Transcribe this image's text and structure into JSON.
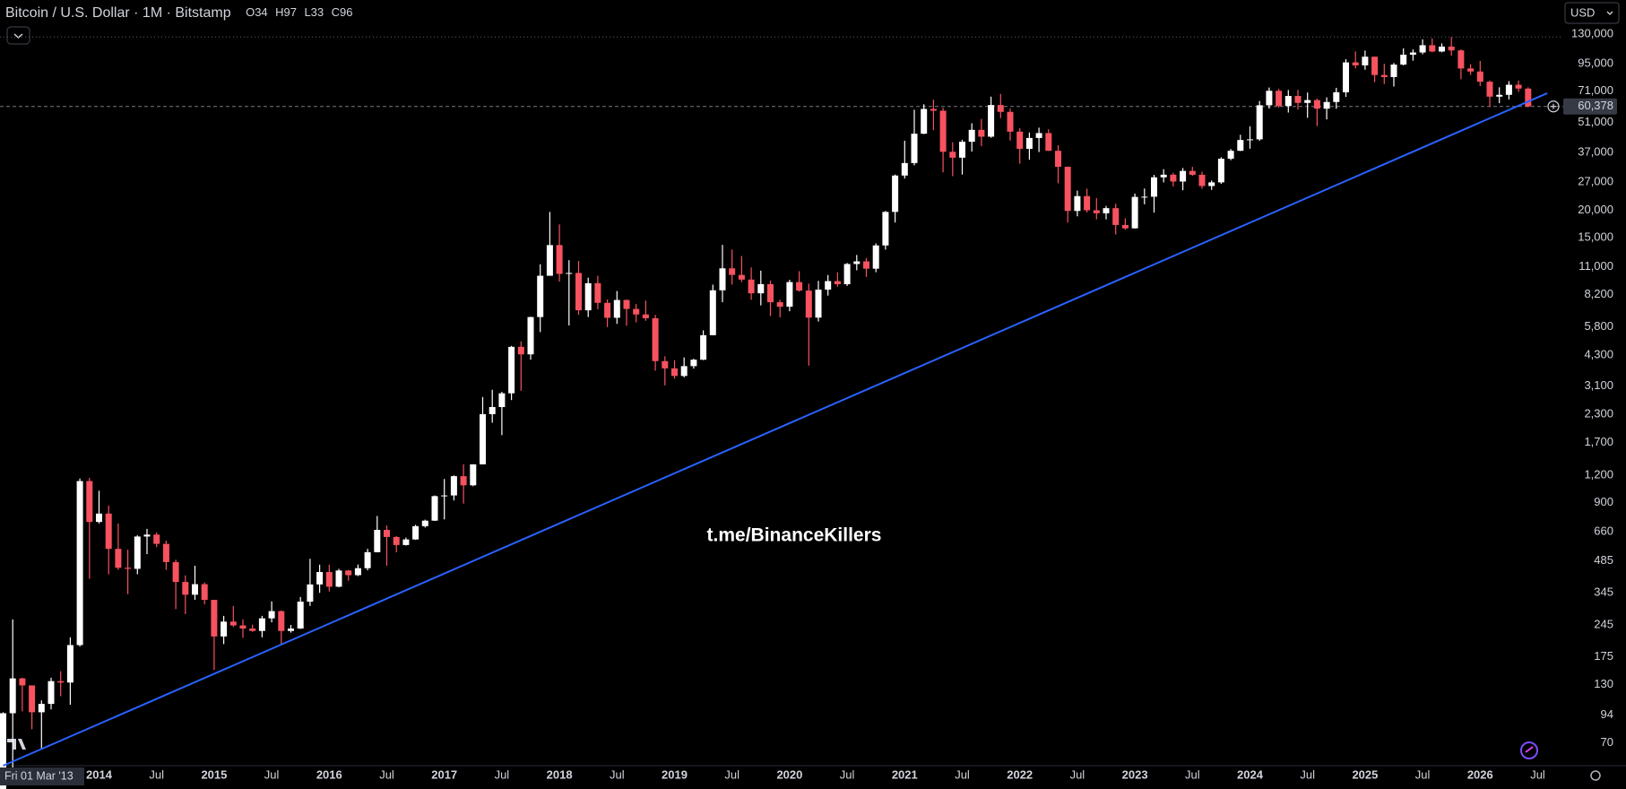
{
  "chart_data": {
    "type": "candlestick",
    "title": "Bitcoin / U.S. Dollar · 1M · Bitstamp",
    "ohlc_labels": [
      "O",
      "H",
      "L",
      "C"
    ],
    "currency_button": "USD",
    "crosshair_label": "Fri 01 Mar '13",
    "watermark": "t.me/BinanceKillers",
    "up_color": "#ffffff",
    "down_color": "#f7525f",
    "log_scale": true,
    "grid": false,
    "ylim": [
      55,
      187000
    ],
    "yticks": [
      {
        "value": 130000,
        "label": "130,000"
      },
      {
        "value": 95000,
        "label": "95,000"
      },
      {
        "value": 71000,
        "label": "71,000"
      },
      {
        "value": 51000,
        "label": "51,000"
      },
      {
        "value": 37000,
        "label": "37,000"
      },
      {
        "value": 27000,
        "label": "27,000"
      },
      {
        "value": 20000,
        "label": "20,000"
      },
      {
        "value": 15000,
        "label": "15,000"
      },
      {
        "value": 11000,
        "label": "11,000"
      },
      {
        "value": 8200,
        "label": "8,200"
      },
      {
        "value": 5800,
        "label": "5,800"
      },
      {
        "value": 4300,
        "label": "4,300"
      },
      {
        "value": 3100,
        "label": "3,100"
      },
      {
        "value": 2300,
        "label": "2,300"
      },
      {
        "value": 1700,
        "label": "1,700"
      },
      {
        "value": 1200,
        "label": "1,200"
      },
      900,
      660,
      485,
      345,
      245,
      175,
      130,
      94,
      70
    ],
    "xticks": [
      {
        "value": "2014-01",
        "label": "2014"
      },
      {
        "value": "2014-07",
        "label": "Jul"
      },
      {
        "value": "2015-01",
        "label": "2015"
      },
      {
        "value": "2015-07",
        "label": "Jul"
      },
      {
        "value": "2016-01",
        "label": "2016"
      },
      {
        "value": "2016-07",
        "label": "Jul"
      },
      {
        "value": "2017-01",
        "label": "2017"
      },
      {
        "value": "2017-07",
        "label": "Jul"
      },
      {
        "value": "2018-01",
        "label": "2018"
      },
      {
        "value": "2018-07",
        "label": "Jul"
      },
      {
        "value": "2019-01",
        "label": "2019"
      },
      {
        "value": "2019-07",
        "label": "Jul"
      },
      {
        "value": "2020-01",
        "label": "2020"
      },
      {
        "value": "2020-07",
        "label": "Jul"
      },
      {
        "value": "2021-01",
        "label": "2021"
      },
      {
        "value": "2021-07",
        "label": "Jul"
      },
      {
        "value": "2022-01",
        "label": "2022"
      },
      {
        "value": "2022-07",
        "label": "Jul"
      },
      {
        "value": "2023-01",
        "label": "2023"
      },
      {
        "value": "2023-07",
        "label": "Jul"
      },
      {
        "value": "2024-01",
        "label": "2024"
      },
      {
        "value": "2024-07",
        "label": "Jul"
      },
      {
        "value": "2025-01",
        "label": "2025"
      },
      {
        "value": "2025-07",
        "label": "Jul"
      },
      {
        "value": "2026-01",
        "label": "2026"
      },
      {
        "value": "2026-07",
        "label": "Jul"
      }
    ],
    "last_price": {
      "value": 60378,
      "label": "60,378"
    },
    "trendline": {
      "color": "#2962ff",
      "points": [
        {
          "x": "2013-03",
          "y": 55
        },
        {
          "x": "2026-08",
          "y": 69500
        }
      ]
    },
    "x": [
      "2013-03",
      "2013-04",
      "2013-05",
      "2013-06",
      "2013-07",
      "2013-08",
      "2013-09",
      "2013-10",
      "2013-11",
      "2013-12",
      "2014-01",
      "2014-02",
      "2014-03",
      "2014-04",
      "2014-05",
      "2014-06",
      "2014-07",
      "2014-08",
      "2014-09",
      "2014-10",
      "2014-11",
      "2014-12",
      "2015-01",
      "2015-02",
      "2015-03",
      "2015-04",
      "2015-05",
      "2015-06",
      "2015-07",
      "2015-08",
      "2015-09",
      "2015-10",
      "2015-11",
      "2015-12",
      "2016-01",
      "2016-02",
      "2016-03",
      "2016-04",
      "2016-05",
      "2016-06",
      "2016-07",
      "2016-08",
      "2016-09",
      "2016-10",
      "2016-11",
      "2016-12",
      "2017-01",
      "2017-02",
      "2017-03",
      "2017-04",
      "2017-05",
      "2017-06",
      "2017-07",
      "2017-08",
      "2017-09",
      "2017-10",
      "2017-11",
      "2017-12",
      "2018-01",
      "2018-02",
      "2018-03",
      "2018-04",
      "2018-05",
      "2018-06",
      "2018-07",
      "2018-08",
      "2018-09",
      "2018-10",
      "2018-11",
      "2018-12",
      "2019-01",
      "2019-02",
      "2019-03",
      "2019-04",
      "2019-05",
      "2019-06",
      "2019-07",
      "2019-08",
      "2019-09",
      "2019-10",
      "2019-11",
      "2019-12",
      "2020-01",
      "2020-02",
      "2020-03",
      "2020-04",
      "2020-05",
      "2020-06",
      "2020-07",
      "2020-08",
      "2020-09",
      "2020-10",
      "2020-11",
      "2020-12",
      "2021-01",
      "2021-02",
      "2021-03",
      "2021-04",
      "2021-05",
      "2021-06",
      "2021-07",
      "2021-08",
      "2021-09",
      "2021-10",
      "2021-11",
      "2021-12",
      "2022-01",
      "2022-02",
      "2022-03",
      "2022-04",
      "2022-05",
      "2022-06",
      "2022-07",
      "2022-08",
      "2022-09",
      "2022-10",
      "2022-11",
      "2022-12",
      "2023-01",
      "2023-02",
      "2023-03",
      "2023-04",
      "2023-05",
      "2023-06",
      "2023-07",
      "2023-08",
      "2023-09",
      "2023-10",
      "2023-11",
      "2023-12",
      "2024-01",
      "2024-02",
      "2024-03",
      "2024-04",
      "2024-05",
      "2024-06",
      "2024-07",
      "2024-08",
      "2024-09",
      "2024-10",
      "2024-11",
      "2024-12",
      "2025-01",
      "2025-02",
      "2025-03",
      "2025-04",
      "2025-05",
      "2025-06",
      "2025-07",
      "2025-08",
      "2025-09",
      "2025-10",
      "2025-11",
      "2025-12",
      "2026-01",
      "2026-02",
      "2026-03",
      "2026-04",
      "2026-05",
      "2026-06"
    ],
    "ohlc": [
      [
        34,
        97,
        33,
        96
      ],
      [
        96,
        260,
        50,
        139
      ],
      [
        139,
        140,
        98,
        129
      ],
      [
        129,
        129,
        81,
        97
      ],
      [
        97,
        110,
        66,
        106
      ],
      [
        106,
        140,
        100,
        135
      ],
      [
        135,
        150,
        115,
        133
      ],
      [
        133,
        215,
        105,
        198
      ],
      [
        198,
        1160,
        195,
        1130
      ],
      [
        1130,
        1170,
        400,
        732
      ],
      [
        732,
        1020,
        720,
        800
      ],
      [
        800,
        870,
        420,
        550
      ],
      [
        550,
        720,
        440,
        450
      ],
      [
        450,
        545,
        340,
        445
      ],
      [
        445,
        635,
        420,
        627
      ],
      [
        627,
        680,
        520,
        640
      ],
      [
        640,
        655,
        560,
        580
      ],
      [
        580,
        600,
        440,
        478
      ],
      [
        478,
        490,
        290,
        387
      ],
      [
        387,
        415,
        275,
        338
      ],
      [
        338,
        460,
        320,
        378
      ],
      [
        378,
        385,
        305,
        320
      ],
      [
        320,
        320,
        152,
        217
      ],
      [
        217,
        270,
        200,
        254
      ],
      [
        254,
        300,
        240,
        244
      ],
      [
        244,
        260,
        214,
        236
      ],
      [
        236,
        246,
        228,
        230
      ],
      [
        230,
        270,
        215,
        263
      ],
      [
        263,
        315,
        252,
        284
      ],
      [
        284,
        286,
        199,
        230
      ],
      [
        230,
        245,
        226,
        236
      ],
      [
        236,
        330,
        235,
        314
      ],
      [
        314,
        495,
        300,
        377
      ],
      [
        377,
        465,
        345,
        430
      ],
      [
        430,
        465,
        350,
        368
      ],
      [
        368,
        445,
        366,
        437
      ],
      [
        437,
        440,
        392,
        416
      ],
      [
        416,
        466,
        412,
        448
      ],
      [
        448,
        550,
        438,
        531
      ],
      [
        531,
        780,
        530,
        673
      ],
      [
        673,
        705,
        460,
        624
      ],
      [
        624,
        630,
        530,
        573
      ],
      [
        573,
        620,
        570,
        608
      ],
      [
        608,
        710,
        605,
        700
      ],
      [
        700,
        750,
        690,
        742
      ],
      [
        742,
        970,
        740,
        963
      ],
      [
        963,
        1155,
        752,
        970
      ],
      [
        970,
        1200,
        920,
        1190
      ],
      [
        1190,
        1350,
        890,
        1080
      ],
      [
        1080,
        1350,
        1070,
        1350
      ],
      [
        1350,
        2760,
        1350,
        2300
      ],
      [
        2300,
        2980,
        2100,
        2480
      ],
      [
        2480,
        2915,
        1840,
        2870
      ],
      [
        2870,
        4750,
        2670,
        4700
      ],
      [
        4700,
        4980,
        2950,
        4340
      ],
      [
        4340,
        6470,
        4100,
        6450
      ],
      [
        6450,
        11300,
        5500,
        10000
      ],
      [
        10000,
        19700,
        10000,
        13850
      ],
      [
        13850,
        17250,
        9400,
        10200
      ],
      [
        10200,
        11800,
        5900,
        10300
      ],
      [
        10300,
        11700,
        6600,
        6930
      ],
      [
        6930,
        9800,
        6450,
        9240
      ],
      [
        9240,
        10000,
        7000,
        7500
      ],
      [
        7500,
        7780,
        5800,
        6400
      ],
      [
        6400,
        8500,
        6000,
        7730
      ],
      [
        7730,
        7770,
        5880,
        7030
      ],
      [
        7030,
        7410,
        6100,
        6630
      ],
      [
        6630,
        7680,
        6200,
        6370
      ],
      [
        6370,
        6600,
        3650,
        4040
      ],
      [
        4040,
        4250,
        3120,
        3740
      ],
      [
        3740,
        4080,
        3350,
        3450
      ],
      [
        3450,
        4200,
        3400,
        3830
      ],
      [
        3830,
        4140,
        3730,
        4100
      ],
      [
        4100,
        5600,
        4080,
        5320
      ],
      [
        5320,
        9100,
        5320,
        8570
      ],
      [
        8570,
        13880,
        7550,
        10820
      ],
      [
        10820,
        13200,
        9100,
        10090
      ],
      [
        10090,
        12330,
        9350,
        9600
      ],
      [
        9600,
        10920,
        7750,
        8300
      ],
      [
        8300,
        10550,
        7300,
        9150
      ],
      [
        9150,
        9500,
        6520,
        7550
      ],
      [
        7550,
        7750,
        6430,
        7200
      ],
      [
        7200,
        9580,
        6860,
        9350
      ],
      [
        9350,
        10500,
        8450,
        8540
      ],
      [
        8540,
        9190,
        3850,
        6410
      ],
      [
        6410,
        9470,
        6150,
        8630
      ],
      [
        8630,
        10080,
        8100,
        9450
      ],
      [
        9450,
        10380,
        8900,
        9140
      ],
      [
        9140,
        11450,
        8980,
        11330
      ],
      [
        11330,
        12470,
        10600,
        11650
      ],
      [
        11650,
        12070,
        9880,
        10780
      ],
      [
        10780,
        14100,
        10380,
        13800
      ],
      [
        13800,
        19900,
        13200,
        19700
      ],
      [
        19700,
        29300,
        17600,
        28990
      ],
      [
        28990,
        41950,
        28100,
        33100
      ],
      [
        33100,
        58350,
        32300,
        45200
      ],
      [
        45200,
        61800,
        45000,
        58800
      ],
      [
        58800,
        64900,
        47000,
        57700
      ],
      [
        57700,
        59500,
        30000,
        37300
      ],
      [
        37300,
        41300,
        28800,
        35040
      ],
      [
        35040,
        42400,
        29300,
        41500
      ],
      [
        41500,
        50500,
        37400,
        47100
      ],
      [
        47100,
        52900,
        39600,
        43800
      ],
      [
        43800,
        67000,
        43300,
        61300
      ],
      [
        61300,
        69000,
        53300,
        57000
      ],
      [
        57000,
        59100,
        42000,
        46200
      ],
      [
        46200,
        47900,
        32900,
        38500
      ],
      [
        38500,
        45800,
        34300,
        43200
      ],
      [
        43200,
        48200,
        37200,
        45500
      ],
      [
        45500,
        47400,
        37600,
        37700
      ],
      [
        37700,
        40000,
        26700,
        31800
      ],
      [
        31800,
        31900,
        17600,
        19900
      ],
      [
        19900,
        24700,
        18800,
        23300
      ],
      [
        23300,
        25200,
        19600,
        20050
      ],
      [
        20050,
        22800,
        18200,
        19420
      ],
      [
        19420,
        21000,
        18200,
        20500
      ],
      [
        20500,
        21500,
        15500,
        17150
      ],
      [
        17150,
        18400,
        16300,
        16550
      ],
      [
        16550,
        23950,
        16500,
        23100
      ],
      [
        23100,
        25250,
        21350,
        23150
      ],
      [
        23150,
        29200,
        19550,
        28450
      ],
      [
        28450,
        31000,
        26950,
        29250
      ],
      [
        29250,
        29850,
        25800,
        27200
      ],
      [
        27200,
        31400,
        24800,
        30450
      ],
      [
        30450,
        31800,
        28900,
        29230
      ],
      [
        29230,
        30200,
        25200,
        25930
      ],
      [
        25930,
        27500,
        24900,
        26960
      ],
      [
        26960,
        35200,
        26550,
        34650
      ],
      [
        34650,
        38400,
        34100,
        37700
      ],
      [
        37700,
        44700,
        37600,
        42280
      ],
      [
        42280,
        48900,
        38550,
        42580
      ],
      [
        42580,
        64000,
        41900,
        61150
      ],
      [
        61150,
        73800,
        59000,
        71300
      ],
      [
        71300,
        72800,
        59600,
        60650
      ],
      [
        60650,
        71900,
        56600,
        67500
      ],
      [
        67500,
        72000,
        58400,
        62700
      ],
      [
        62700,
        70000,
        53500,
        64600
      ],
      [
        64600,
        65600,
        49000,
        58970
      ],
      [
        58970,
        66500,
        52600,
        63300
      ],
      [
        63300,
        73600,
        58900,
        70200
      ],
      [
        70200,
        99800,
        66800,
        96400
      ],
      [
        96400,
        108300,
        90500,
        93400
      ],
      [
        93400,
        109300,
        89200,
        102400
      ],
      [
        102400,
        102500,
        78200,
        84300
      ],
      [
        84300,
        95000,
        76600,
        82500
      ],
      [
        82500,
        95800,
        74600,
        94200
      ],
      [
        94200,
        111900,
        93400,
        104600
      ],
      [
        104600,
        110600,
        98200,
        107100
      ],
      [
        107100,
        123200,
        105100,
        115700
      ],
      [
        115700,
        124500,
        107300,
        108200
      ],
      [
        108200,
        117900,
        107300,
        114000
      ],
      [
        114000,
        126200,
        103500,
        109500
      ],
      [
        109500,
        110600,
        80600,
        90400
      ],
      [
        90400,
        94600,
        84400,
        87500
      ],
      [
        87500,
        97900,
        75000,
        78500
      ],
      [
        78500,
        79500,
        60000,
        67000
      ],
      [
        67000,
        74000,
        62500,
        68300
      ],
      [
        68300,
        79000,
        65000,
        76000
      ],
      [
        76000,
        79500,
        70500,
        73000
      ],
      [
        73000,
        74000,
        59800,
        60378
      ]
    ]
  }
}
